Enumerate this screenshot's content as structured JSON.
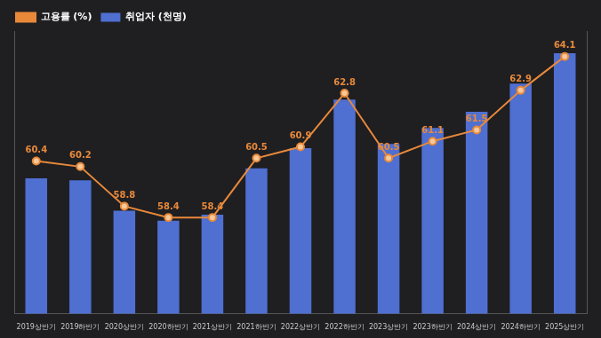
{
  "chart_data": {
    "type": "bar",
    "categories": [
      "2019상반기",
      "2019하반기",
      "2020상반기",
      "2020하반기",
      "2021상반기",
      "2021하반기",
      "2022상반기",
      "2022하반기",
      "2023상반기",
      "2023하반기",
      "2024상반기",
      "2024하반기",
      "2025상반기"
    ],
    "series": [
      {
        "name": "취업자 (천명)",
        "type": "bar",
        "color": "#4f6fd1",
        "values": [
          627,
          626,
          611,
          606,
          609,
          632,
          642,
          666,
          644,
          652,
          660,
          674,
          689
        ]
      },
      {
        "name": "고용률 (%)",
        "type": "line",
        "axis": "y2",
        "color": "#e8893a",
        "marker": "circle",
        "values": [
          60.4,
          60.2,
          58.8,
          58.4,
          58.4,
          60.5,
          60.9,
          62.8,
          60.5,
          61.1,
          61.5,
          62.9,
          64.1
        ]
      }
    ],
    "ylim": [
      560,
      700
    ],
    "y2lim": [
      55,
      65
    ],
    "tick_labels": "x",
    "grid": false,
    "legend": "top-left",
    "data_labels": true
  }
}
